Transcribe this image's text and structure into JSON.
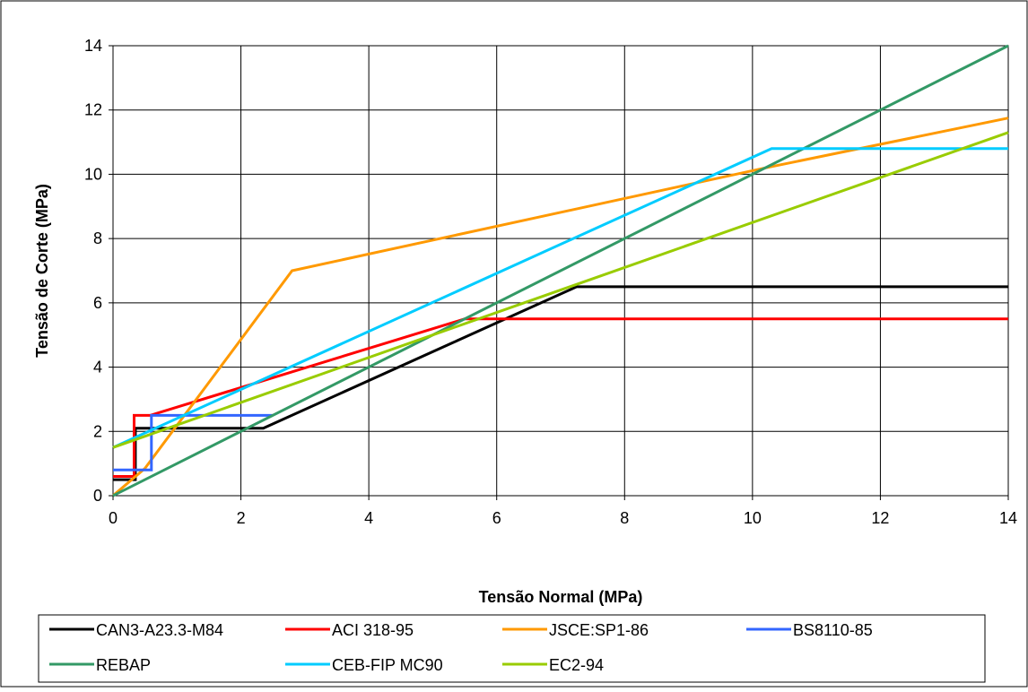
{
  "chart_data": {
    "type": "line",
    "title": "",
    "xlabel": "Tensão Normal (MPa)",
    "ylabel": "Tensão de Corte (MPa)",
    "xlim": [
      0,
      14
    ],
    "ylim": [
      0,
      14
    ],
    "xticks": [
      "0",
      "2",
      "4",
      "6",
      "8",
      "10",
      "12",
      "14"
    ],
    "yticks": [
      "0",
      "2",
      "4",
      "6",
      "8",
      "10",
      "12",
      "14"
    ],
    "grid": true,
    "legend_position": "bottom",
    "series": [
      {
        "name": "CAN3-A23.3-M84",
        "color": "#000000",
        "x": [
          0,
          0.35,
          0.35,
          2.35,
          7.25,
          14
        ],
        "y": [
          0.5,
          0.5,
          2.1,
          2.1,
          6.5,
          6.5
        ]
      },
      {
        "name": "ACI 318-95",
        "color": "#ff0000",
        "x": [
          0,
          0.33,
          0.33,
          0.58,
          5.5,
          14
        ],
        "y": [
          0.6,
          0.6,
          2.5,
          2.5,
          5.5,
          5.5
        ]
      },
      {
        "name": "JSCE:SP1-86",
        "color": "#ff9900",
        "x": [
          0,
          0.5,
          2.8,
          10.2,
          14
        ],
        "y": [
          0,
          0.85,
          7.0,
          10.2,
          11.75
        ]
      },
      {
        "name": "BS8110-85",
        "color": "#3366ff",
        "x": [
          0,
          0.6,
          0.6,
          2.5
        ],
        "y": [
          0.8,
          0.8,
          2.5,
          2.5
        ]
      },
      {
        "name": "REBAP",
        "color": "#339966",
        "x": [
          0,
          14
        ],
        "y": [
          0,
          14
        ]
      },
      {
        "name": "CEB-FIP MC90",
        "color": "#00ccff",
        "x": [
          0,
          10.3,
          14
        ],
        "y": [
          1.5,
          10.8,
          10.8
        ]
      },
      {
        "name": "EC2-94",
        "color": "#99cc00",
        "x": [
          0,
          14
        ],
        "y": [
          1.5,
          11.3
        ]
      }
    ]
  }
}
